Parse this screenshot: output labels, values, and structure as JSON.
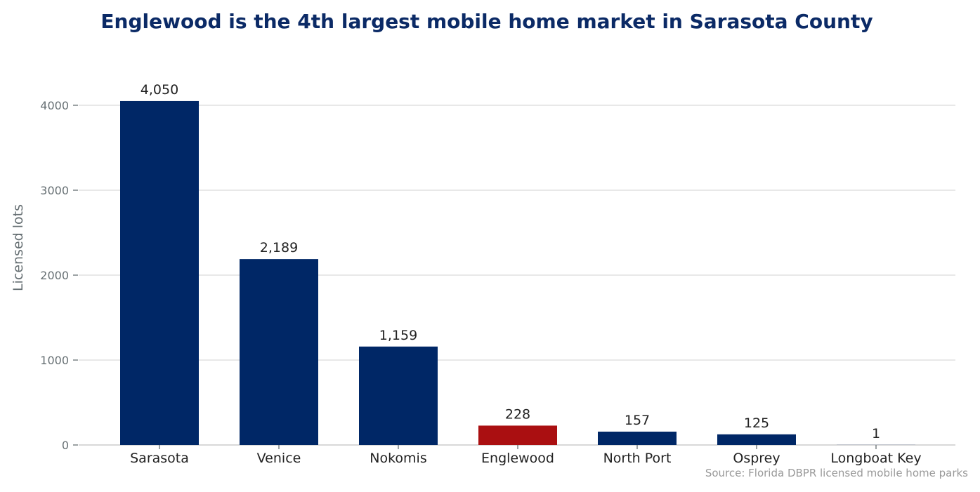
{
  "chart_data": {
    "type": "bar",
    "title": "Englewood is the 4th largest mobile home market in Sarasota County",
    "xlabel": "",
    "ylabel": "Licensed lots",
    "categories": [
      "Sarasota",
      "Venice",
      "Nokomis",
      "Englewood",
      "North Port",
      "Osprey",
      "Longboat Key"
    ],
    "values": [
      4050,
      2189,
      1159,
      228,
      157,
      125,
      1
    ],
    "data_labels": [
      "4,050",
      "2,189",
      "1,159",
      "228",
      "157",
      "125",
      "1"
    ],
    "highlight_category": "Englewood",
    "ylim": [
      0,
      4400
    ],
    "yticks": [
      0,
      1000,
      2000,
      3000,
      4000
    ],
    "ytick_labels": [
      "0",
      "1000",
      "2000",
      "3000",
      "4000"
    ],
    "grid": "horizontal",
    "source": "Source: Florida DBPR licensed mobile home parks"
  },
  "colors": {
    "title": "#0b2a66",
    "bar": "#002766",
    "highlight_bar": "#aa0f11",
    "grid": "#d9d9d9",
    "baseline": "#cccccc",
    "tick_text": "#666f73",
    "category_text": "#222222",
    "data_label_text": "#222222",
    "source_text": "#999999"
  }
}
